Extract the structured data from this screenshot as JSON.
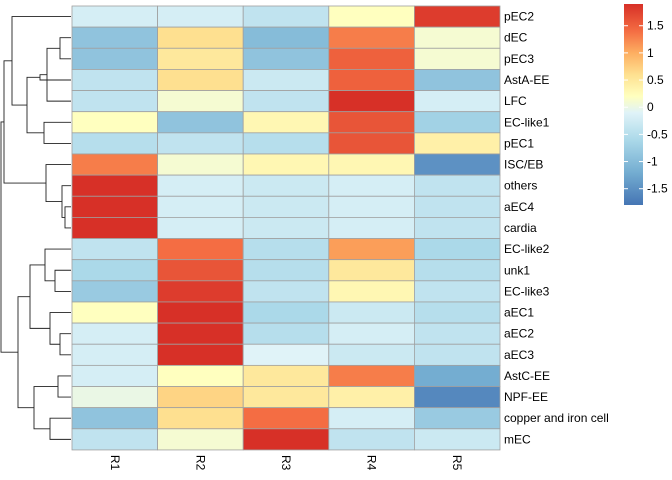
{
  "chart_data": {
    "type": "heatmap",
    "rows": [
      "pEC2",
      "dEC",
      "pEC3",
      "AstA-EE",
      "LFC",
      "EC-like1",
      "pEC1",
      "ISC/EB",
      "others",
      "aEC4",
      "cardia",
      "EC-like2",
      "unk1",
      "EC-like3",
      "aEC1",
      "aEC2",
      "aEC3",
      "AstC-EE",
      "NPF-EE",
      "copper and iron cell",
      "mEC"
    ],
    "columns": [
      "R1",
      "R2",
      "R3",
      "R4",
      "R5"
    ],
    "values": [
      [
        -0.2,
        -0.2,
        -0.4,
        0.2,
        1.8
      ],
      [
        -0.9,
        0.6,
        -1.0,
        1.3,
        0.1
      ],
      [
        -0.9,
        0.5,
        -0.9,
        1.5,
        0.1
      ],
      [
        -0.4,
        0.6,
        -0.3,
        1.5,
        -0.9
      ],
      [
        -0.4,
        0.1,
        -0.4,
        1.9,
        -0.2
      ],
      [
        0.2,
        -0.9,
        0.3,
        1.6,
        -0.7
      ],
      [
        -0.5,
        -0.4,
        -0.5,
        1.6,
        0.4
      ],
      [
        1.3,
        0.1,
        0.3,
        0.3,
        -1.5
      ],
      [
        1.9,
        -0.2,
        -0.3,
        -0.2,
        -0.4
      ],
      [
        1.9,
        -0.2,
        -0.3,
        -0.2,
        -0.4
      ],
      [
        1.9,
        -0.2,
        -0.3,
        -0.2,
        -0.4
      ],
      [
        -0.4,
        1.4,
        -0.5,
        1.1,
        -0.6
      ],
      [
        -0.6,
        1.6,
        -0.5,
        0.5,
        -0.5
      ],
      [
        -0.8,
        1.8,
        -0.4,
        0.3,
        -0.4
      ],
      [
        0.2,
        1.9,
        -0.6,
        -0.3,
        -0.5
      ],
      [
        -0.2,
        1.9,
        -0.5,
        -0.2,
        -0.4
      ],
      [
        -0.2,
        1.9,
        -0.1,
        -0.3,
        -0.4
      ],
      [
        -0.2,
        0.2,
        0.5,
        1.3,
        -1.2
      ],
      [
        0.0,
        0.7,
        0.5,
        0.4,
        -1.6
      ],
      [
        -0.9,
        0.6,
        1.4,
        -0.2,
        -0.8
      ],
      [
        -0.4,
        0.1,
        1.9,
        -0.4,
        -0.3
      ]
    ],
    "color_scale": {
      "stops": [
        {
          "v": -1.8,
          "color": "#4575b4"
        },
        {
          "v": -1.2,
          "color": "#74add1"
        },
        {
          "v": -0.6,
          "color": "#abd9e9"
        },
        {
          "v": -0.1,
          "color": "#e0f3f8"
        },
        {
          "v": 0.2,
          "color": "#ffffbf"
        },
        {
          "v": 0.6,
          "color": "#fee090"
        },
        {
          "v": 1.0,
          "color": "#fdae61"
        },
        {
          "v": 1.4,
          "color": "#f46d43"
        },
        {
          "v": 1.9,
          "color": "#d73027"
        }
      ],
      "legend_ticks": [
        1.5,
        1,
        0.5,
        0,
        -0.5,
        -1,
        -1.5
      ],
      "legend_ticks_text": [
        "1.5",
        "1",
        "0.5",
        "0",
        "-0.5",
        "-1",
        "-1.5"
      ],
      "range": [
        -1.8,
        1.9
      ]
    },
    "row_dendrogram": true,
    "legend_position": "top-right"
  }
}
